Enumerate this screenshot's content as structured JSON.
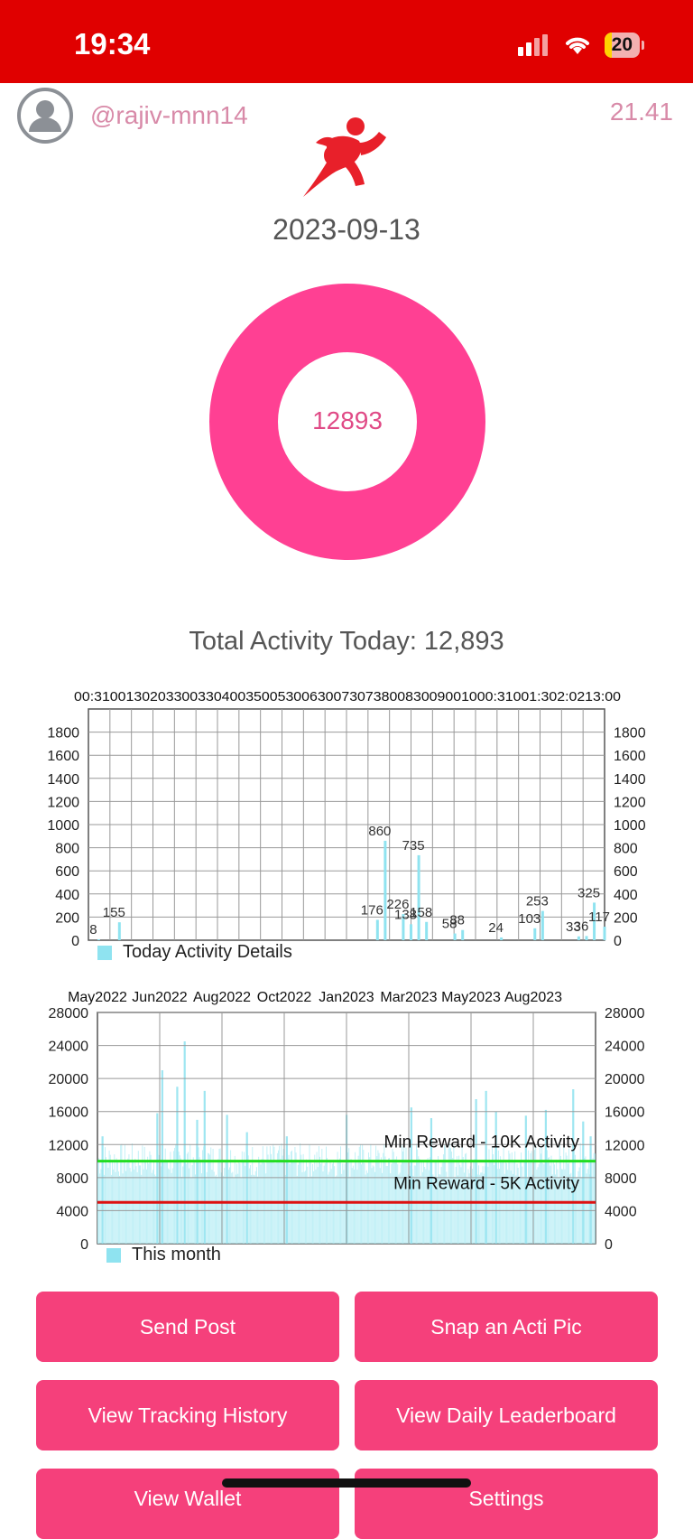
{
  "status_bar": {
    "time": "19:34",
    "battery": "20"
  },
  "header": {
    "username": "@rajiv-mnn14",
    "balance": "21.41",
    "date": "2023-09-13"
  },
  "donut": {
    "value": "12893",
    "color": "#ff4093"
  },
  "summary": {
    "total_activity": "Total Activity Today: 12,893"
  },
  "colors": {
    "accent": "#f5407b",
    "status_bar": "#e00000",
    "bar": "#8fe3f0"
  },
  "chart_data": [
    {
      "type": "bar",
      "x_ticks": [
        "00:00",
        "01:00",
        "01:30",
        "02:00",
        "02:30",
        "03:00",
        "03:30",
        "04:00",
        "04:30",
        "05:00",
        "05:30",
        "06:00",
        "06:30",
        "07:00",
        "07:30",
        "08:00",
        "08:30",
        "09:00",
        "09:30",
        "10:00",
        "10:30",
        "11:00",
        "11:30",
        "12:00",
        "12:30",
        "13:00"
      ],
      "x_ticks_display": "00:31001302033003304003500530063007307380083009001000:31001:302:0213:00",
      "ylim": [
        0,
        2000
      ],
      "y_ticks": [
        "0",
        "200",
        "400",
        "600",
        "800",
        "1000",
        "1200",
        "1400",
        "1600",
        "1800"
      ],
      "bars": [
        {
          "pos": 0.02,
          "value": 8,
          "label": "8"
        },
        {
          "pos": 0.06,
          "value": 155,
          "label": "155"
        },
        {
          "pos": 0.56,
          "value": 176,
          "label": "176"
        },
        {
          "pos": 0.575,
          "value": 860,
          "label": "860"
        },
        {
          "pos": 0.61,
          "value": 226,
          "label": "226"
        },
        {
          "pos": 0.625,
          "value": 138,
          "label": "138"
        },
        {
          "pos": 0.64,
          "value": 735,
          "label": "735"
        },
        {
          "pos": 0.655,
          "value": 158,
          "label": "158"
        },
        {
          "pos": 0.71,
          "value": 58,
          "label": "58"
        },
        {
          "pos": 0.725,
          "value": 88,
          "label": "88"
        },
        {
          "pos": 0.8,
          "value": 24,
          "label": "24"
        },
        {
          "pos": 0.865,
          "value": 103,
          "label": "103"
        },
        {
          "pos": 0.88,
          "value": 253,
          "label": "253"
        },
        {
          "pos": 0.95,
          "value": 33,
          "label": "33"
        },
        {
          "pos": 0.965,
          "value": 36,
          "label": "36"
        },
        {
          "pos": 0.98,
          "value": 325,
          "label": "325"
        },
        {
          "pos": 1.0,
          "value": 117,
          "label": "117"
        }
      ],
      "legend": "Today Activity Details"
    },
    {
      "type": "bar",
      "x_ticks": [
        "May2022",
        "Jun2022",
        "Aug2022",
        "Oct2022",
        "Jan2023",
        "Mar2023",
        "May2023",
        "Aug2023"
      ],
      "ylim": [
        0,
        28000
      ],
      "y_ticks": [
        "0",
        "4000",
        "8000",
        "12000",
        "16000",
        "20000",
        "24000",
        "28000"
      ],
      "spikes": [
        {
          "pos": 0.01,
          "value": 13000
        },
        {
          "pos": 0.12,
          "value": 15800
        },
        {
          "pos": 0.13,
          "value": 21000
        },
        {
          "pos": 0.16,
          "value": 19000
        },
        {
          "pos": 0.175,
          "value": 24500
        },
        {
          "pos": 0.2,
          "value": 15000
        },
        {
          "pos": 0.215,
          "value": 18500
        },
        {
          "pos": 0.26,
          "value": 15600
        },
        {
          "pos": 0.3,
          "value": 13500
        },
        {
          "pos": 0.38,
          "value": 13000
        },
        {
          "pos": 0.5,
          "value": 15600
        },
        {
          "pos": 0.63,
          "value": 16500
        },
        {
          "pos": 0.67,
          "value": 15200
        },
        {
          "pos": 0.76,
          "value": 17500
        },
        {
          "pos": 0.78,
          "value": 18500
        },
        {
          "pos": 0.8,
          "value": 16000
        },
        {
          "pos": 0.86,
          "value": 15500
        },
        {
          "pos": 0.9,
          "value": 16200
        },
        {
          "pos": 0.955,
          "value": 18700
        },
        {
          "pos": 0.975,
          "value": 14800
        },
        {
          "pos": 0.99,
          "value": 13000
        }
      ],
      "thresholds": [
        {
          "value": 10000,
          "label": "Min Reward - 10K Activity",
          "color": "#22dd22"
        },
        {
          "value": 5000,
          "label": "Min Reward - 5K Activity",
          "color": "#dd1111"
        }
      ],
      "legend": "This month"
    }
  ],
  "buttons": [
    {
      "label": "Send Post"
    },
    {
      "label": "Snap an Acti Pic"
    },
    {
      "label": "View Tracking History"
    },
    {
      "label": "View Daily Leaderboard"
    },
    {
      "label": "View Wallet"
    },
    {
      "label": "Settings"
    }
  ]
}
